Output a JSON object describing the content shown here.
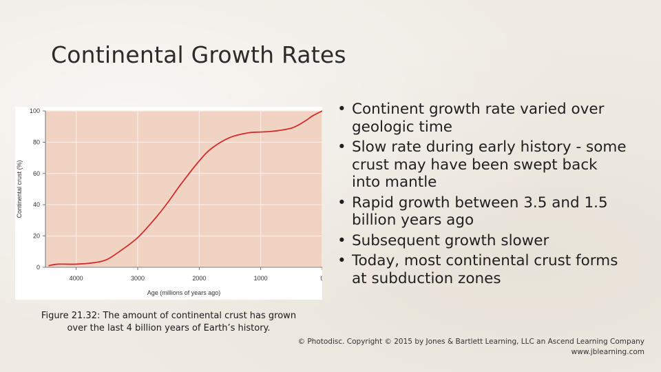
{
  "slide": {
    "title": "Continental Growth Rates",
    "caption_line1": "Figure 21.32: The amount of continental crust has grown",
    "caption_line2": "over the last 4 billion years of Earth’s history.",
    "bullets": [
      "Continent growth rate varied over geologic time",
      "Slow rate during early history - some crust may have been swept back into mantle",
      "Rapid growth between 3.5 and 1.5 billion years ago",
      "Subsequent growth slower",
      "Today, most continental crust forms at subduction zones"
    ],
    "bullet_glyph": "•",
    "copyright_line1": "© Photodisc. Copyright © 2015 by Jones & Bartlett Learning, LLC an Ascend Learning Company",
    "copyright_line2": "www.jblearning.com"
  },
  "colors": {
    "plot_bg": "#f1d3c4",
    "grid": "#fbeee7",
    "curve": "#d42a2a",
    "panel": "#ffffff"
  },
  "chart_data": {
    "type": "line",
    "title": "",
    "xlabel": "Age (millions of years ago)",
    "ylabel": "Continental crust (%)",
    "xlim": [
      4500,
      0
    ],
    "ylim": [
      0,
      100
    ],
    "x_ticks": [
      4000,
      3000,
      2000,
      1000,
      0
    ],
    "y_ticks": [
      0,
      20,
      40,
      60,
      80,
      100
    ],
    "grid": true,
    "series": [
      {
        "x": [
          4450,
          4300,
          4000,
          3700,
          3500,
          3300,
          3000,
          2700,
          2500,
          2300,
          2000,
          1800,
          1500,
          1200,
          1000,
          800,
          500,
          300,
          150,
          0
        ],
        "y": [
          1,
          2,
          2,
          3,
          5,
          10,
          19,
          32,
          42,
          53,
          68,
          76,
          83,
          86,
          86.5,
          87,
          89,
          93,
          97,
          100
        ]
      }
    ]
  }
}
